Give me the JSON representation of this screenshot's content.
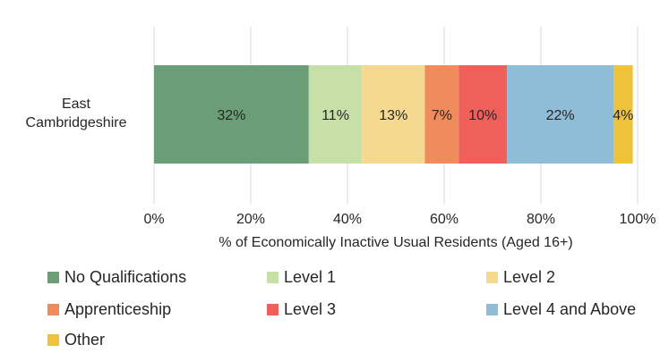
{
  "chart_data": {
    "type": "bar",
    "orientation": "horizontal",
    "stacked": true,
    "title": "",
    "categories": [
      "East Cambridgeshire"
    ],
    "category_label_lines": [
      "East",
      "Cambridgeshire"
    ],
    "series": [
      {
        "name": "No Qualifications",
        "values": [
          32
        ],
        "label": "32%",
        "color": "#6b9e76"
      },
      {
        "name": "Level 1",
        "values": [
          11
        ],
        "label": "11%",
        "color": "#c7e0a8"
      },
      {
        "name": "Level 2",
        "values": [
          13
        ],
        "label": "13%",
        "color": "#f5d98e"
      },
      {
        "name": "Apprenticeship",
        "values": [
          7
        ],
        "label": "7%",
        "color": "#f08c5c"
      },
      {
        "name": "Level 3",
        "values": [
          10
        ],
        "label": "10%",
        "color": "#f0605a"
      },
      {
        "name": "Level 4 and Above",
        "values": [
          22
        ],
        "label": "22%",
        "color": "#8fbcd6"
      },
      {
        "name": "Other",
        "values": [
          4
        ],
        "label": "4%",
        "color": "#eec23a"
      }
    ],
    "xlabel": "% of Economically Inactive Usual Residents (Aged 16+)",
    "ylabel": "",
    "xlim": [
      0,
      100
    ],
    "xticks": [
      "0%",
      "20%",
      "40%",
      "60%",
      "80%",
      "100%"
    ],
    "grid": true,
    "legend_position": "bottom"
  }
}
